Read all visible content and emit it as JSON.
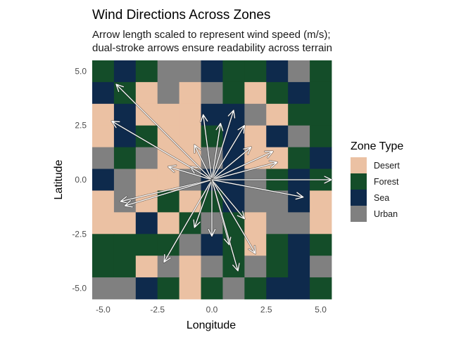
{
  "chart_data": {
    "type": "heatmap",
    "title": "Wind Directions Across Zones",
    "subtitle_lines": [
      "Arrow length scaled to represent wind speed (m/s);",
      "dual-stroke arrows ensure readability across terrain"
    ],
    "xlabel": "Longitude",
    "ylabel": "Latitude",
    "xlim": [
      -5.5,
      5.5
    ],
    "ylim": [
      -5.5,
      5.5
    ],
    "x_ticks": [
      -5.0,
      -2.5,
      0.0,
      2.5,
      5.0
    ],
    "x_tick_labels": [
      "-5.0",
      "-2.5",
      "0.0",
      "2.5",
      "5.0"
    ],
    "y_ticks": [
      -5.0,
      -2.5,
      0.0,
      2.5,
      5.0
    ],
    "y_tick_labels": [
      "-5.0",
      "-2.5",
      "0.0",
      "2.5",
      "5.0"
    ],
    "grid_x": [
      -5,
      -4,
      -3,
      -2,
      -1,
      0,
      1,
      2,
      3,
      4,
      5
    ],
    "grid_y": [
      5,
      4,
      3,
      2,
      1,
      0,
      -1,
      -2,
      -3,
      -4,
      -5
    ],
    "zone_codes": {
      "D": "Desert",
      "F": "Forest",
      "S": "Sea",
      "U": "Urban"
    },
    "zone_grid": [
      "FSFUUSFFSUF",
      "SFDUDUFDFSF",
      "DSDDDSSUDFF",
      "DSFDDFSDSUF",
      "UFUDDUSDDFS",
      "SUDDUSSUFSF",
      "DUDFDFSUUSD",
      "DDSDFUFDUUD",
      "FFFFUSFDFSF",
      "FFDUDUFUFSU",
      "UUSFDFUFSSF"
    ],
    "wind_origin": [
      0.0,
      0.0
    ],
    "wind_vectors": [
      {
        "x": 5.5,
        "y": 0.0
      },
      {
        "x": 3.0,
        "y": 0.8
      },
      {
        "x": 2.8,
        "y": 1.3
      },
      {
        "x": 1.8,
        "y": 1.5
      },
      {
        "x": 1.5,
        "y": 2.5
      },
      {
        "x": 1.0,
        "y": 3.2
      },
      {
        "x": 0.4,
        "y": 2.6
      },
      {
        "x": -0.4,
        "y": 3.0
      },
      {
        "x": -0.8,
        "y": 1.6
      },
      {
        "x": -1.0,
        "y": 0.6
      },
      {
        "x": -2.0,
        "y": 0.6
      },
      {
        "x": -4.4,
        "y": 4.4
      },
      {
        "x": -4.6,
        "y": 2.7
      },
      {
        "x": -4.2,
        "y": -1.0
      },
      {
        "x": -4.0,
        "y": -1.2
      },
      {
        "x": -2.2,
        "y": -3.8
      },
      {
        "x": -0.8,
        "y": -2.2
      },
      {
        "x": 0.0,
        "y": -2.6
      },
      {
        "x": 0.8,
        "y": -3.0
      },
      {
        "x": 1.2,
        "y": -4.2
      },
      {
        "x": 1.5,
        "y": -1.8
      },
      {
        "x": 2.0,
        "y": -3.4
      },
      {
        "x": 4.2,
        "y": -0.8
      }
    ],
    "legend": {
      "title": "Zone Type",
      "position": "right",
      "entries": [
        {
          "label": "Desert",
          "color": "#ebc1a3"
        },
        {
          "label": "Forest",
          "color": "#144d29"
        },
        {
          "label": "Sea",
          "color": "#0e2a4c"
        },
        {
          "label": "Urban",
          "color": "#808080"
        }
      ]
    },
    "arrow_color": "#ffffff",
    "arrow_outline_color": "#1a1a1a"
  }
}
